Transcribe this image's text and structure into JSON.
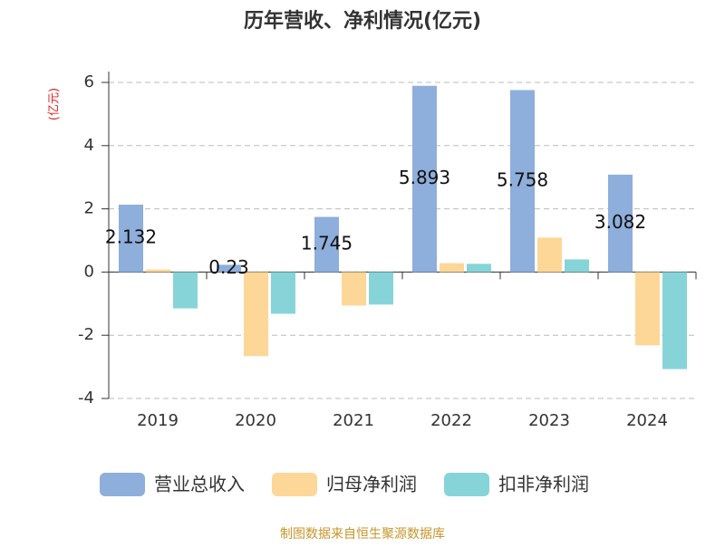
{
  "chart_data": {
    "type": "bar",
    "title": "历年营收、净利情况(亿元)",
    "y_label": "(亿元)",
    "categories": [
      "2019",
      "2020",
      "2021",
      "2022",
      "2023",
      "2024"
    ],
    "series": [
      {
        "name": "营业总收入",
        "color": "#8eaedb",
        "values": [
          2.132,
          0.23,
          1.745,
          5.893,
          5.758,
          3.082
        ]
      },
      {
        "name": "归母净利润",
        "color": "#fdd797",
        "values": [
          0.08,
          -2.66,
          -1.06,
          0.28,
          1.09,
          -2.32
        ]
      },
      {
        "name": "扣非净利润",
        "color": "#86d4d8",
        "values": [
          -1.15,
          -1.32,
          -1.03,
          0.26,
          0.4,
          -3.07
        ]
      }
    ],
    "ylim": [
      -4,
      6
    ],
    "yticks": [
      -4,
      -2,
      0,
      2,
      4,
      6
    ],
    "grid": true,
    "source": "制图数据来自恒生聚源数据库"
  }
}
